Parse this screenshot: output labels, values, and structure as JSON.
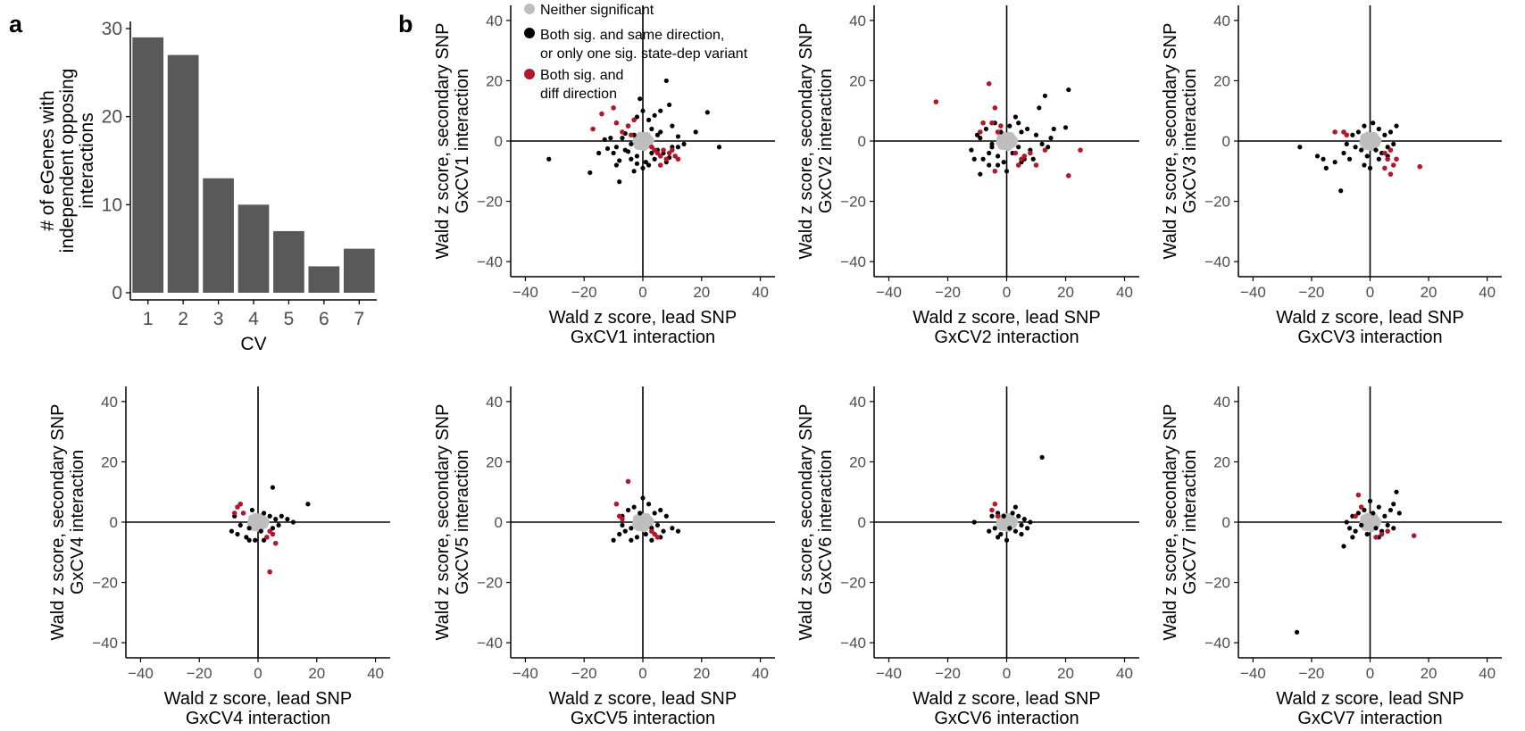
{
  "figure": {
    "panel_a_label": "a",
    "panel_b_label": "b",
    "legend": [
      {
        "label": "Neither significant",
        "color": "#bebebe"
      },
      {
        "label_lines": [
          "Both sig. and same direction,",
          "or only one sig. state-dep variant"
        ],
        "color": "#000000"
      },
      {
        "label_lines": [
          "Both sig. and",
          "diff direction"
        ],
        "color": "#b2182b"
      }
    ]
  },
  "chart_data": [
    {
      "type": "bar",
      "panel": "a",
      "categories": [
        "1",
        "2",
        "3",
        "4",
        "5",
        "6",
        "7"
      ],
      "values": [
        29,
        27,
        13,
        10,
        7,
        3,
        5
      ],
      "xlabel": "CV",
      "ylabel_lines": [
        "# of eGenes with",
        "independent opposing",
        "interactions"
      ],
      "ylim": [
        0,
        30
      ],
      "yticks": [
        "0",
        "10",
        "20",
        "30"
      ],
      "bar_color": "#595959"
    },
    {
      "type": "scatter",
      "panel": "b",
      "cv": "CV1",
      "xlabel_lines": [
        "Wald z score, lead SNP",
        "GxCV1 interaction"
      ],
      "ylabel_lines": [
        "Wald z score, secondary SNP",
        "GxCV1 interaction"
      ],
      "xlim": [
        -45,
        45
      ],
      "ylim": [
        -45,
        45
      ],
      "xticks": [
        "−40",
        "−20",
        "0",
        "20",
        "40"
      ],
      "yticks": [
        "−40",
        "−20",
        "0",
        "20",
        "40"
      ],
      "black_points": [
        [
          -32,
          -6
        ],
        [
          -18,
          -10.5
        ],
        [
          -15,
          -4
        ],
        [
          -12,
          -2.5
        ],
        [
          -10,
          -4
        ],
        [
          -9,
          -8
        ],
        [
          -8,
          -6.5
        ],
        [
          -7,
          1
        ],
        [
          -6,
          -3
        ],
        [
          -5,
          5
        ],
        [
          -4,
          -6
        ],
        [
          -3,
          -10
        ],
        [
          -3,
          2
        ],
        [
          -2,
          8
        ],
        [
          -2,
          -5
        ],
        [
          -1,
          14
        ],
        [
          0,
          -9
        ],
        [
          0,
          10
        ],
        [
          1,
          -7
        ],
        [
          2,
          7
        ],
        [
          3,
          4
        ],
        [
          4,
          -6
        ],
        [
          5,
          2
        ],
        [
          6,
          10
        ],
        [
          7,
          -4
        ],
        [
          8,
          20
        ],
        [
          9,
          12
        ],
        [
          10,
          5
        ],
        [
          12,
          -2
        ],
        [
          14,
          -1
        ],
        [
          18,
          3
        ],
        [
          22,
          9.5
        ],
        [
          26,
          -2
        ],
        [
          -8,
          -13.5
        ],
        [
          -6,
          2.5
        ],
        [
          -11,
          1
        ],
        [
          3,
          -4
        ],
        [
          5,
          -3
        ],
        [
          -4,
          -1
        ],
        [
          8,
          -7
        ],
        [
          10,
          -2
        ],
        [
          -13,
          0.5
        ],
        [
          2,
          -8
        ],
        [
          6,
          3
        ],
        [
          -5,
          -3.5
        ],
        [
          12,
          1.5
        ],
        [
          9,
          -5.5
        ],
        [
          -2,
          -7.5
        ],
        [
          4,
          8.5
        ],
        [
          -9,
          -2
        ]
      ],
      "red_points": [
        [
          -17,
          4
        ],
        [
          -14,
          9
        ],
        [
          -10,
          11
        ],
        [
          -9,
          6
        ],
        [
          -7,
          3
        ],
        [
          -5,
          5
        ],
        [
          -4,
          2
        ],
        [
          -3,
          7
        ],
        [
          4,
          -3
        ],
        [
          5,
          -4
        ],
        [
          6,
          -5
        ],
        [
          7,
          -3
        ],
        [
          8,
          -6
        ],
        [
          9,
          -4
        ],
        [
          10,
          -3
        ],
        [
          11,
          -5
        ],
        [
          12,
          -6
        ],
        [
          6,
          -8
        ],
        [
          3,
          -2
        ]
      ]
    },
    {
      "type": "scatter",
      "panel": "b",
      "cv": "CV2",
      "xlabel_lines": [
        "Wald z score, lead SNP",
        "GxCV2 interaction"
      ],
      "ylabel_lines": [
        "Wald z score, secondary SNP",
        "GxCV2 interaction"
      ],
      "xlim": [
        -45,
        45
      ],
      "ylim": [
        -45,
        45
      ],
      "xticks": [
        "−40",
        "−20",
        "0",
        "20",
        "40"
      ],
      "yticks": [
        "−40",
        "−20",
        "0",
        "20",
        "40"
      ],
      "black_points": [
        [
          -9,
          -11
        ],
        [
          -12,
          -3
        ],
        [
          -10,
          2
        ],
        [
          -8,
          -6
        ],
        [
          -7,
          4
        ],
        [
          -6,
          -8
        ],
        [
          -5,
          -2
        ],
        [
          -4,
          6
        ],
        [
          -3,
          -5
        ],
        [
          -2,
          3
        ],
        [
          -1,
          -7
        ],
        [
          1,
          5
        ],
        [
          2,
          -4
        ],
        [
          3,
          8
        ],
        [
          4,
          -2
        ],
        [
          5,
          3
        ],
        [
          6,
          -6
        ],
        [
          7,
          4
        ],
        [
          8,
          -3
        ],
        [
          10,
          2
        ],
        [
          11,
          11
        ],
        [
          12,
          -1
        ],
        [
          13,
          15
        ],
        [
          14,
          -2
        ],
        [
          16,
          4
        ],
        [
          20,
          4.5
        ],
        [
          21,
          17
        ],
        [
          -11,
          -6
        ],
        [
          -6,
          -4
        ],
        [
          9,
          -6
        ],
        [
          5,
          -7
        ],
        [
          -3,
          -8
        ],
        [
          0,
          -10
        ],
        [
          -9,
          1
        ],
        [
          4,
          6
        ],
        [
          15,
          1
        ],
        [
          -5,
          -1
        ]
      ],
      "red_points": [
        [
          -24,
          13
        ],
        [
          -6,
          19
        ],
        [
          -4,
          11
        ],
        [
          -5,
          6
        ],
        [
          -8,
          6
        ],
        [
          -9,
          3
        ],
        [
          -3,
          3
        ],
        [
          -2,
          5
        ],
        [
          3,
          -4
        ],
        [
          4,
          -8
        ],
        [
          5,
          -6
        ],
        [
          6,
          -5
        ],
        [
          8,
          -4
        ],
        [
          10,
          -8
        ],
        [
          13,
          -3
        ],
        [
          21,
          -11.5
        ],
        [
          25,
          -3
        ],
        [
          -4,
          -10
        ]
      ]
    },
    {
      "type": "scatter",
      "panel": "b",
      "cv": "CV3",
      "xlabel_lines": [
        "Wald z score, lead SNP",
        "GxCV3 interaction"
      ],
      "ylabel_lines": [
        "Wald z score, secondary SNP",
        "GxCV3 interaction"
      ],
      "xlim": [
        -45,
        45
      ],
      "ylim": [
        -45,
        45
      ],
      "xticks": [
        "−40",
        "−20",
        "0",
        "20",
        "40"
      ],
      "yticks": [
        "−40",
        "−20",
        "0",
        "20",
        "40"
      ],
      "black_points": [
        [
          -24,
          -2
        ],
        [
          -18,
          -5
        ],
        [
          -16,
          -6
        ],
        [
          -15,
          -9
        ],
        [
          -12,
          -7
        ],
        [
          -10,
          -16.5
        ],
        [
          -9,
          -4
        ],
        [
          -7,
          -6
        ],
        [
          -6,
          2
        ],
        [
          -5,
          -2
        ],
        [
          -4,
          3
        ],
        [
          -3,
          -3
        ],
        [
          -2,
          5
        ],
        [
          -1,
          -5
        ],
        [
          1,
          6
        ],
        [
          2,
          -3
        ],
        [
          3,
          4
        ],
        [
          4,
          -4
        ],
        [
          5,
          2
        ],
        [
          6,
          -2
        ],
        [
          7,
          3
        ],
        [
          8,
          -1
        ],
        [
          9,
          5
        ],
        [
          -2,
          -8
        ],
        [
          3,
          -6
        ],
        [
          0,
          -9
        ],
        [
          -8,
          -1
        ],
        [
          6,
          -5
        ]
      ],
      "red_points": [
        [
          -12,
          3
        ],
        [
          -9,
          3
        ],
        [
          -8,
          2
        ],
        [
          5,
          -4
        ],
        [
          6,
          -6
        ],
        [
          7,
          -3
        ],
        [
          8,
          -8
        ],
        [
          9,
          -6
        ],
        [
          7,
          -11
        ],
        [
          17,
          -8.5
        ],
        [
          5,
          -9
        ]
      ]
    },
    {
      "type": "scatter",
      "panel": "b",
      "cv": "CV4",
      "xlabel_lines": [
        "Wald z score, lead SNP",
        "GxCV4 interaction"
      ],
      "ylabel_lines": [
        "Wald z score, secondary SNP",
        "GxCV4 interaction"
      ],
      "xlim": [
        -45,
        45
      ],
      "ylim": [
        -45,
        45
      ],
      "xticks": [
        "−40",
        "−20",
        "0",
        "20",
        "40"
      ],
      "yticks": [
        "−40",
        "−20",
        "0",
        "20",
        "40"
      ],
      "black_points": [
        [
          -9,
          -3
        ],
        [
          -8,
          2
        ],
        [
          -7,
          -4
        ],
        [
          -6,
          -1
        ],
        [
          -5,
          3
        ],
        [
          -4,
          -5
        ],
        [
          -3,
          -2
        ],
        [
          -2,
          4
        ],
        [
          -1,
          -6
        ],
        [
          1,
          -3
        ],
        [
          2,
          3
        ],
        [
          3,
          -5
        ],
        [
          4,
          2
        ],
        [
          5,
          -2
        ],
        [
          6,
          1
        ],
        [
          7,
          -1
        ],
        [
          8,
          2
        ],
        [
          10,
          1
        ],
        [
          12,
          0
        ],
        [
          17,
          6
        ],
        [
          5,
          11.5
        ],
        [
          -3,
          -6
        ],
        [
          2,
          -6
        ]
      ],
      "red_points": [
        [
          -7,
          5
        ],
        [
          -6,
          6
        ],
        [
          -5,
          3
        ],
        [
          -8,
          3
        ],
        [
          4,
          -3
        ],
        [
          5,
          -4
        ],
        [
          6,
          -7
        ],
        [
          4,
          -16.5
        ],
        [
          3,
          -5
        ]
      ]
    },
    {
      "type": "scatter",
      "panel": "b",
      "cv": "CV5",
      "xlabel_lines": [
        "Wald z score, lead SNP",
        "GxCV5 interaction"
      ],
      "ylabel_lines": [
        "Wald z score, secondary SNP",
        "GxCV5 interaction"
      ],
      "xlim": [
        -45,
        45
      ],
      "ylim": [
        -45,
        45
      ],
      "xticks": [
        "−40",
        "−20",
        "0",
        "20",
        "40"
      ],
      "yticks": [
        "−40",
        "−20",
        "0",
        "20",
        "40"
      ],
      "black_points": [
        [
          -10,
          -6
        ],
        [
          -8,
          -4
        ],
        [
          -7,
          2
        ],
        [
          -6,
          -3
        ],
        [
          -5,
          4
        ],
        [
          -4,
          -2
        ],
        [
          -3,
          5
        ],
        [
          -2,
          -5
        ],
        [
          -1,
          3
        ],
        [
          1,
          -4
        ],
        [
          2,
          6
        ],
        [
          3,
          -2
        ],
        [
          4,
          3
        ],
        [
          5,
          -1
        ],
        [
          6,
          4
        ],
        [
          7,
          -3
        ],
        [
          8,
          2
        ],
        [
          10,
          -2
        ],
        [
          12,
          -3
        ],
        [
          -4,
          -6
        ],
        [
          3,
          -6
        ],
        [
          0,
          8
        ],
        [
          -7,
          -1
        ],
        [
          6,
          -5
        ]
      ],
      "red_points": [
        [
          -5,
          13.5
        ],
        [
          -9,
          6
        ],
        [
          -8,
          2
        ],
        [
          -7,
          1
        ],
        [
          4,
          -4
        ],
        [
          5,
          -5
        ],
        [
          3,
          -3
        ]
      ]
    },
    {
      "type": "scatter",
      "panel": "b",
      "cv": "CV6",
      "xlabel_lines": [
        "Wald z score, lead SNP",
        "GxCV6 interaction"
      ],
      "ylabel_lines": [
        "Wald z score, secondary SNP",
        "GxCV6 interaction"
      ],
      "xlim": [
        -45,
        45
      ],
      "ylim": [
        -45,
        45
      ],
      "xticks": [
        "−40",
        "−20",
        "0",
        "20",
        "40"
      ],
      "yticks": [
        "−40",
        "−20",
        "0",
        "20",
        "40"
      ],
      "black_points": [
        [
          -11,
          0
        ],
        [
          -6,
          -3
        ],
        [
          -5,
          2
        ],
        [
          -4,
          -2
        ],
        [
          -3,
          3
        ],
        [
          -2,
          -4
        ],
        [
          -1,
          2
        ],
        [
          1,
          -2
        ],
        [
          2,
          3
        ],
        [
          3,
          -3
        ],
        [
          4,
          2
        ],
        [
          5,
          -1
        ],
        [
          6,
          1
        ],
        [
          7,
          -2
        ],
        [
          8,
          0
        ],
        [
          12,
          21.5
        ],
        [
          -3,
          -5
        ],
        [
          3,
          5
        ],
        [
          0,
          -6
        ],
        [
          5,
          -4
        ]
      ],
      "red_points": [
        [
          -4,
          6
        ],
        [
          -5,
          4
        ],
        [
          -3,
          2
        ]
      ]
    },
    {
      "type": "scatter",
      "panel": "b",
      "cv": "CV7",
      "xlabel_lines": [
        "Wald z score, lead SNP",
        "GxCV7 interaction"
      ],
      "ylabel_lines": [
        "Wald z score, secondary SNP",
        "GxCV7 interaction"
      ],
      "xlim": [
        -45,
        45
      ],
      "ylim": [
        -45,
        45
      ],
      "xticks": [
        "−40",
        "−20",
        "0",
        "20",
        "40"
      ],
      "yticks": [
        "−40",
        "−20",
        "0",
        "20",
        "40"
      ],
      "black_points": [
        [
          -25,
          -36.5
        ],
        [
          -9,
          -8
        ],
        [
          -7,
          -2
        ],
        [
          -6,
          2
        ],
        [
          -5,
          -3
        ],
        [
          -4,
          3
        ],
        [
          -3,
          -1
        ],
        [
          -2,
          4
        ],
        [
          -1,
          -4
        ],
        [
          1,
          3
        ],
        [
          2,
          -2
        ],
        [
          3,
          5
        ],
        [
          4,
          -3
        ],
        [
          5,
          2
        ],
        [
          6,
          -1
        ],
        [
          7,
          4
        ],
        [
          8,
          -2
        ],
        [
          9,
          10
        ],
        [
          10,
          3
        ],
        [
          -6,
          -5
        ],
        [
          3,
          -5
        ],
        [
          0,
          7
        ],
        [
          8,
          6
        ],
        [
          -8,
          0
        ]
      ],
      "red_points": [
        [
          -4,
          9
        ],
        [
          -3,
          5
        ],
        [
          -5,
          2
        ],
        [
          4,
          -4
        ],
        [
          6,
          -3
        ],
        [
          15,
          -4.5
        ],
        [
          2,
          -5
        ]
      ]
    }
  ]
}
